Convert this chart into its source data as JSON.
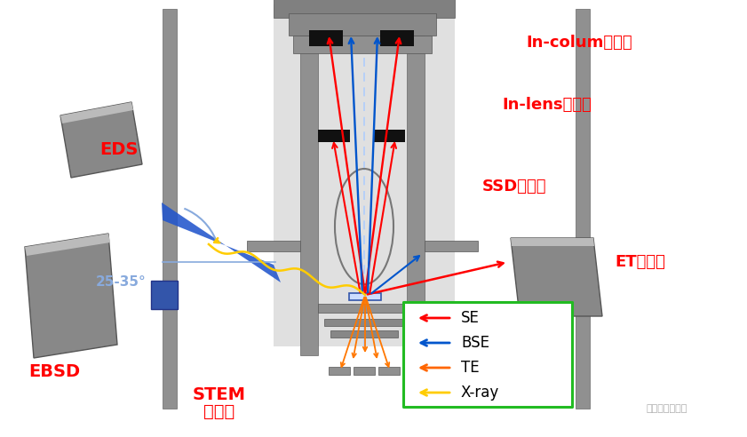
{
  "bg_color": "#ffffff",
  "labels": {
    "in_colum": "In-colum探测器",
    "in_lens": "In-lens探测器",
    "ssd": "SSD探测器",
    "et": "ET探测器",
    "eds": "EDS",
    "ebsd": "EBSD",
    "stem_line1": "STEM",
    "stem_line2": "探测器",
    "angle": "25-35°"
  },
  "watermark": "电子制造资讯站",
  "legend_items": [
    {
      "label": "SE",
      "color": "#ff0000"
    },
    {
      "label": "BSE",
      "color": "#0055cc"
    },
    {
      "label": "TE",
      "color": "#ff6600"
    },
    {
      "label": "X-ray",
      "color": "#ffcc00"
    }
  ]
}
